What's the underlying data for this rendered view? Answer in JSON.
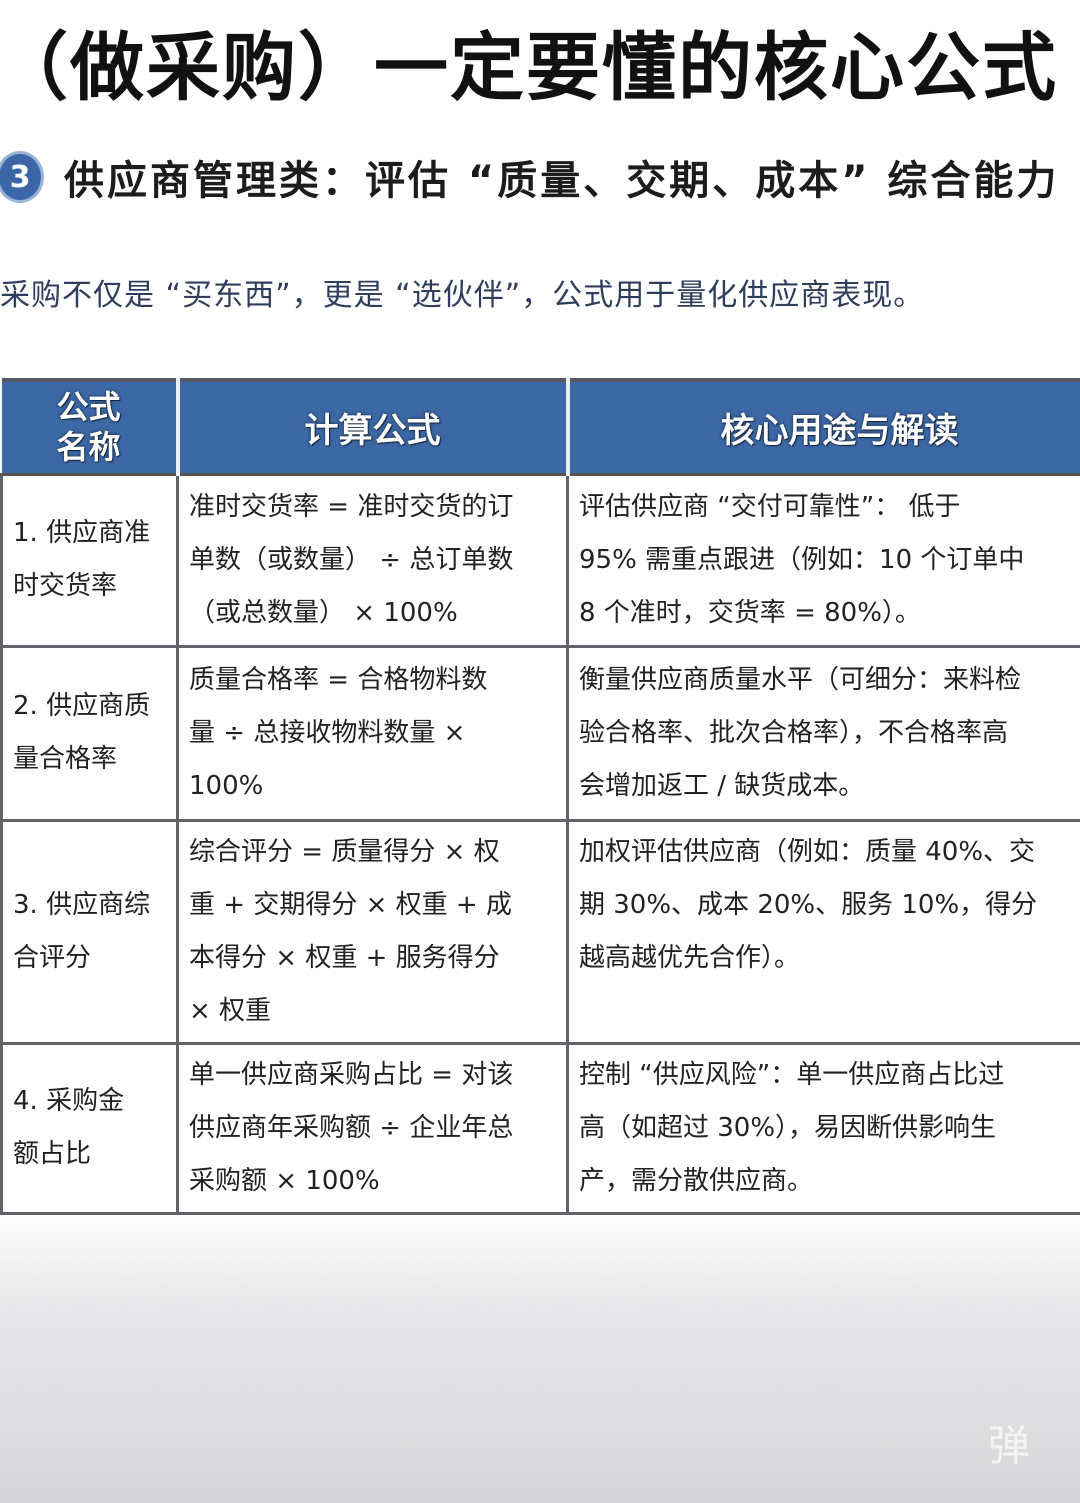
{
  "title": "（做采购）一定要懂的核心公式",
  "section": {
    "number": "3",
    "text": "供应商管理类：评估 “质量、交期、成本” 综合能力"
  },
  "intro": "采购不仅是 “买东西”，更是 “选伙伴”，公式用于量化供应商表现。",
  "table": {
    "headers": [
      "公式名称",
      "计算公式",
      "核心用途与解读"
    ],
    "header_name_lines": [
      "公式",
      "名称"
    ],
    "rows": [
      {
        "name": [
          "1. 供应商准",
          "时交货率"
        ],
        "formula": [
          "准时交货率 = 准时交货的订",
          "单数（或数量） ÷ 总订单数",
          "（或总数量） × 100%"
        ],
        "use": [
          "评估供应商 “交付可靠性”： 低于",
          "95% 需重点跟进（例如：10 个订单中",
          "8 个准时，交货率 = 80%）。"
        ]
      },
      {
        "name": [
          "2. 供应商质",
          "量合格率"
        ],
        "formula": [
          "质量合格率 = 合格物料数",
          "量 ÷ 总接收物料数量 ×",
          "100%"
        ],
        "use": [
          "衡量供应商质量水平（可细分：来料检",
          "验合格率、批次合格率），不合格率高",
          "会增加返工 / 缺货成本。"
        ]
      },
      {
        "name": [
          "3. 供应商综",
          "合评分"
        ],
        "formula": [
          "综合评分 = 质量得分 × 权",
          "重 + 交期得分 × 权重 + 成",
          "本得分 × 权重 + 服务得分",
          "× 权重"
        ],
        "use": [
          "加权评估供应商（例如：质量 40%、交",
          "期 30%、成本 20%、服务 10%，得分",
          "越高越优先合作）。"
        ]
      },
      {
        "name": [
          "4. 采购金",
          "额占比"
        ],
        "formula": [
          "单一供应商采购占比 = 对该",
          "供应商年采购额 ÷ 企业年总",
          "采购额 × 100%"
        ],
        "use": [
          "控制 “供应风险”：单一供应商占比过",
          "高（如超过 30%），易因断供影响生",
          "产，需分散供应商。"
        ]
      }
    ]
  },
  "watermark": "弹",
  "colors": {
    "header_bg": "#3c68a6",
    "badge": "#3b67a8"
  }
}
